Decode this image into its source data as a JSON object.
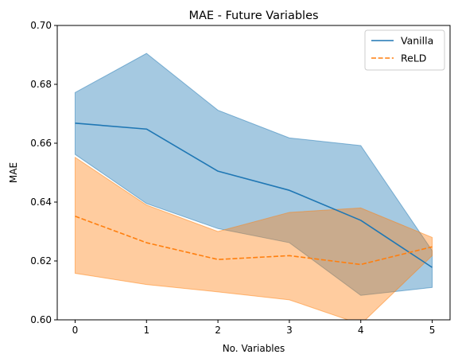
{
  "chart_data": {
    "type": "line",
    "title": "MAE - Future Variables",
    "xlabel": "No. Variables",
    "ylabel": "MAE",
    "x": [
      0,
      1,
      2,
      3,
      4,
      5
    ],
    "xlim": [
      -0.25,
      5.25
    ],
    "ylim": [
      0.6,
      0.7
    ],
    "x_ticks": [
      "0",
      "1",
      "2",
      "3",
      "4",
      "5"
    ],
    "y_ticks": [
      "0.60",
      "0.62",
      "0.64",
      "0.66",
      "0.68",
      "0.70"
    ],
    "grid": false,
    "legend_position": "top-right",
    "series": [
      {
        "name": "Vanilla",
        "style": "solid",
        "color": "#1f77b4",
        "values": [
          0.6668,
          0.6648,
          0.6505,
          0.644,
          0.6338,
          0.6178
        ],
        "band_upper": [
          0.6772,
          0.6905,
          0.6712,
          0.6618,
          0.6592,
          0.6235
        ],
        "band_lower": [
          0.6562,
          0.6395,
          0.631,
          0.6262,
          0.6083,
          0.611
        ]
      },
      {
        "name": "ReLD",
        "style": "dashed",
        "color": "#ff7f0e",
        "values": [
          0.6352,
          0.6262,
          0.6205,
          0.6218,
          0.6188,
          0.6248
        ],
        "band_upper": [
          0.6552,
          0.639,
          0.63,
          0.6365,
          0.638,
          0.628
        ],
        "band_lower": [
          0.6158,
          0.612,
          0.6095,
          0.6068,
          0.5985,
          0.6218
        ]
      }
    ]
  }
}
